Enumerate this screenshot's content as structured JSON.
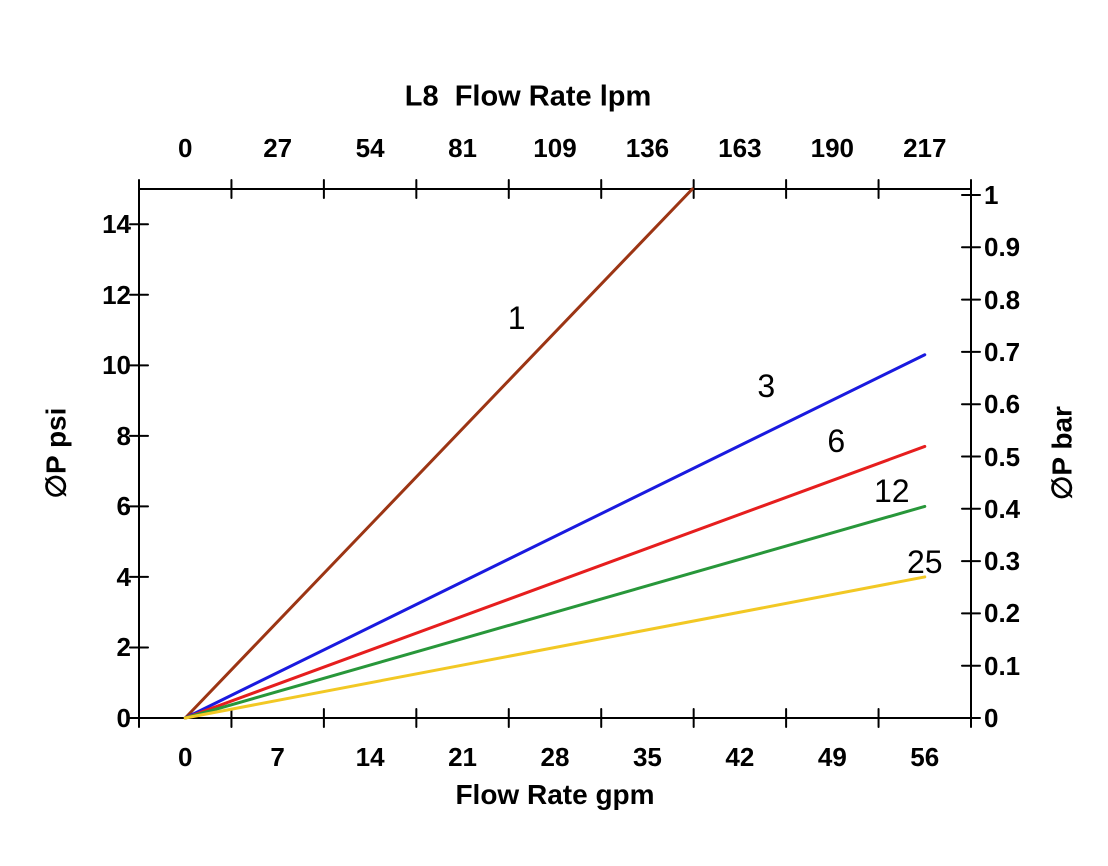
{
  "chart_data": {
    "type": "line",
    "title": "L8  Flow Rate lpm",
    "xlabel_top": "L8  Flow Rate lpm",
    "xlabel_bottom": "Flow Rate gpm",
    "ylabel_left": "∅P psi",
    "ylabel_right": "∅P bar",
    "x_ticks_top_lpm": [
      "0",
      "27",
      "54",
      "81",
      "109",
      "136",
      "163",
      "190",
      "217"
    ],
    "x_ticks_bottom_gpm": [
      "0",
      "7",
      "14",
      "21",
      "28",
      "35",
      "42",
      "49",
      "56"
    ],
    "y_ticks_left_psi": [
      "0",
      "2",
      "4",
      "6",
      "8",
      "10",
      "12",
      "14"
    ],
    "y_ticks_right_bar": [
      "0",
      "0.1",
      "0.2",
      "0.3",
      "0.4",
      "0.5",
      "0.6",
      "0.7",
      "0.8",
      "0.9",
      "1"
    ],
    "x_range_gpm": [
      0,
      56
    ],
    "x_range_lpm": [
      0,
      217
    ],
    "y_range_psi": [
      0,
      15
    ],
    "y_range_bar": [
      0,
      1
    ],
    "axis_color": "#000000",
    "grid": false,
    "legend": "inline-labels",
    "series": [
      {
        "name": "1",
        "color": "#9C3514",
        "points_gpm_psi": [
          [
            0,
            0
          ],
          [
            38.4,
            15.0
          ]
        ],
        "label_at_gpm_psi": [
          25.1,
          11.35
        ]
      },
      {
        "name": "3",
        "color": "#1A1ADF",
        "points_gpm_psi": [
          [
            0,
            0
          ],
          [
            56,
            10.3
          ]
        ],
        "label_at_gpm_psi": [
          44.0,
          9.42
        ]
      },
      {
        "name": "6",
        "color": "#E61E1E",
        "points_gpm_psi": [
          [
            0,
            0
          ],
          [
            56,
            7.7
          ]
        ],
        "label_at_gpm_psi": [
          49.3,
          7.85
        ]
      },
      {
        "name": "12",
        "color": "#28973A",
        "points_gpm_psi": [
          [
            0,
            0
          ],
          [
            56,
            6.0
          ]
        ],
        "label_at_gpm_psi": [
          53.5,
          6.44
        ]
      },
      {
        "name": "25",
        "color": "#F2C824",
        "points_gpm_psi": [
          [
            0,
            0
          ],
          [
            56,
            4.0
          ]
        ],
        "label_at_gpm_psi": [
          56.0,
          4.42
        ]
      }
    ]
  }
}
